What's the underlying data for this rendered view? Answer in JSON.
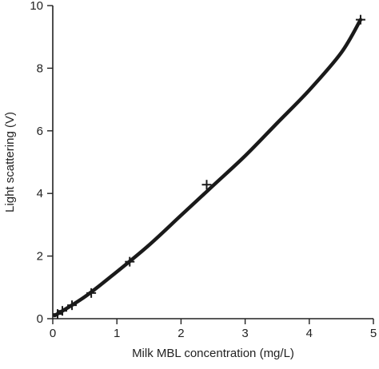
{
  "chart_data": {
    "type": "scatter",
    "title": "",
    "xlabel": "Milk MBL concentration (mg/L)",
    "ylabel": "Light scattering (V)",
    "xlim": [
      0,
      5
    ],
    "ylim": [
      0,
      10
    ],
    "xticks": [
      "0",
      "1",
      "2",
      "3",
      "4",
      "5"
    ],
    "yticks": [
      "0",
      "2",
      "4",
      "6",
      "8",
      "10"
    ],
    "grid": false,
    "legend": "none",
    "marker": "plus",
    "series": [
      {
        "points": [
          {
            "x": 0.075,
            "y": 0.15
          },
          {
            "x": 0.15,
            "y": 0.25
          },
          {
            "x": 0.3,
            "y": 0.43
          },
          {
            "x": 0.6,
            "y": 0.82
          },
          {
            "x": 1.2,
            "y": 1.82
          },
          {
            "x": 2.4,
            "y": 4.28
          },
          {
            "x": 4.8,
            "y": 9.55
          }
        ]
      }
    ],
    "fit_curve": [
      {
        "x": 0.03,
        "y": 0.1
      },
      {
        "x": 0.5,
        "y": 0.7
      },
      {
        "x": 1.0,
        "y": 1.5
      },
      {
        "x": 1.5,
        "y": 2.35
      },
      {
        "x": 2.0,
        "y": 3.3
      },
      {
        "x": 2.5,
        "y": 4.25
      },
      {
        "x": 3.0,
        "y": 5.2
      },
      {
        "x": 3.5,
        "y": 6.25
      },
      {
        "x": 4.0,
        "y": 7.3
      },
      {
        "x": 4.5,
        "y": 8.5
      },
      {
        "x": 4.8,
        "y": 9.55
      }
    ],
    "colors": {
      "line": "#1a1a1a",
      "marker": "#1a1a1a",
      "axis": "#222222"
    }
  }
}
